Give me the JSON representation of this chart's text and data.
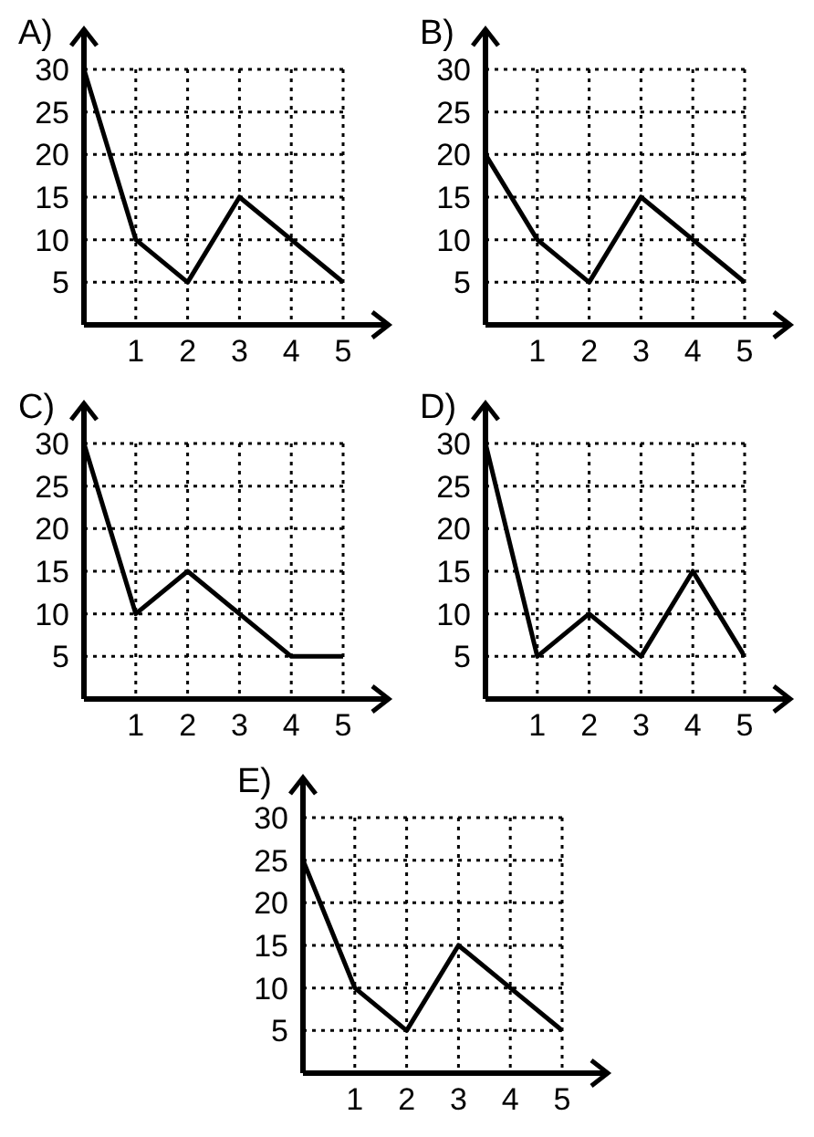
{
  "chart_data": [
    {
      "type": "line",
      "title": "A)",
      "x": [
        0,
        1,
        2,
        3,
        4,
        5
      ],
      "values": [
        30,
        10,
        5,
        15,
        10,
        5
      ],
      "color": "#000000",
      "xlim": [
        0,
        5
      ],
      "ylim": [
        0,
        30
      ],
      "xticks": [
        1,
        2,
        3,
        4,
        5
      ],
      "yticks": [
        5,
        10,
        15,
        20,
        25,
        30
      ],
      "grid": true
    },
    {
      "type": "line",
      "title": "B)",
      "x": [
        0,
        1,
        2,
        3,
        4,
        5
      ],
      "values": [
        20,
        10,
        5,
        15,
        10,
        5
      ],
      "color": "#000000",
      "xlim": [
        0,
        5
      ],
      "ylim": [
        0,
        30
      ],
      "xticks": [
        1,
        2,
        3,
        4,
        5
      ],
      "yticks": [
        5,
        10,
        15,
        20,
        25,
        30
      ],
      "grid": true
    },
    {
      "type": "line",
      "title": "C)",
      "x": [
        0,
        1,
        2,
        3,
        4,
        5
      ],
      "values": [
        30,
        10,
        15,
        10,
        5,
        5
      ],
      "color": "#000000",
      "xlim": [
        0,
        5
      ],
      "ylim": [
        0,
        30
      ],
      "xticks": [
        1,
        2,
        3,
        4,
        5
      ],
      "yticks": [
        5,
        10,
        15,
        20,
        25,
        30
      ],
      "grid": true
    },
    {
      "type": "line",
      "title": "D)",
      "x": [
        0,
        1,
        2,
        3,
        4,
        5
      ],
      "values": [
        30,
        5,
        10,
        5,
        15,
        5
      ],
      "color": "#000000",
      "xlim": [
        0,
        5
      ],
      "ylim": [
        0,
        30
      ],
      "xticks": [
        1,
        2,
        3,
        4,
        5
      ],
      "yticks": [
        5,
        10,
        15,
        20,
        25,
        30
      ],
      "grid": true
    },
    {
      "type": "line",
      "title": "E)",
      "x": [
        0,
        1,
        2,
        3,
        4,
        5
      ],
      "values": [
        25,
        10,
        5,
        15,
        10,
        5
      ],
      "color": "#000000",
      "xlim": [
        0,
        5
      ],
      "ylim": [
        0,
        30
      ],
      "xticks": [
        1,
        2,
        3,
        4,
        5
      ],
      "yticks": [
        5,
        10,
        15,
        20,
        25,
        30
      ],
      "grid": true
    }
  ]
}
